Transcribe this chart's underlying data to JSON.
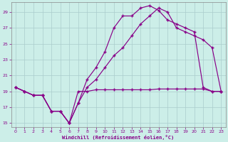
{
  "xlabel": "Windchill (Refroidissement éolien,°C)",
  "bg_color": "#cceee8",
  "grid_color": "#aacccc",
  "line_color": "#880088",
  "xlim_min": -0.5,
  "xlim_max": 23.5,
  "ylim_min": 14.5,
  "ylim_max": 30.2,
  "xticks": [
    0,
    1,
    2,
    3,
    4,
    5,
    6,
    7,
    8,
    9,
    10,
    11,
    12,
    13,
    14,
    15,
    16,
    17,
    18,
    19,
    20,
    21,
    22,
    23
  ],
  "yticks": [
    15,
    17,
    19,
    21,
    23,
    25,
    27,
    29
  ],
  "line_flat_x": [
    0,
    1,
    2,
    3,
    4,
    5,
    6,
    7,
    8,
    9,
    10,
    11,
    12,
    13,
    14,
    15,
    16,
    17,
    18,
    19,
    20,
    21,
    22,
    23
  ],
  "line_flat_y": [
    19.5,
    19.0,
    18.5,
    18.5,
    16.5,
    16.5,
    15.0,
    19.0,
    19.0,
    19.2,
    19.2,
    19.2,
    19.2,
    19.2,
    19.2,
    19.2,
    19.3,
    19.3,
    19.3,
    19.3,
    19.3,
    19.3,
    19.0,
    19.0
  ],
  "line_peak_x": [
    0,
    1,
    2,
    3,
    4,
    5,
    6,
    7,
    8,
    9,
    10,
    11,
    12,
    13,
    14,
    15,
    16,
    17,
    18,
    19,
    20,
    21,
    22,
    23
  ],
  "line_peak_y": [
    19.5,
    19.0,
    18.5,
    18.5,
    16.5,
    16.5,
    15.0,
    17.5,
    20.5,
    22.0,
    24.0,
    27.0,
    28.5,
    28.5,
    29.5,
    29.8,
    29.2,
    28.0,
    27.5,
    27.0,
    26.5,
    19.5,
    19.0,
    19.0
  ],
  "line_diag_x": [
    0,
    1,
    2,
    3,
    4,
    5,
    6,
    7,
    8,
    9,
    10,
    11,
    12,
    13,
    14,
    15,
    16,
    17,
    18,
    19,
    20,
    21,
    22,
    23
  ],
  "line_diag_y": [
    19.5,
    19.0,
    18.5,
    18.5,
    16.5,
    16.5,
    15.0,
    17.5,
    19.5,
    20.5,
    22.0,
    23.5,
    24.5,
    26.0,
    27.5,
    28.5,
    29.5,
    29.0,
    27.0,
    26.5,
    26.0,
    25.5,
    24.5,
    19.0
  ]
}
